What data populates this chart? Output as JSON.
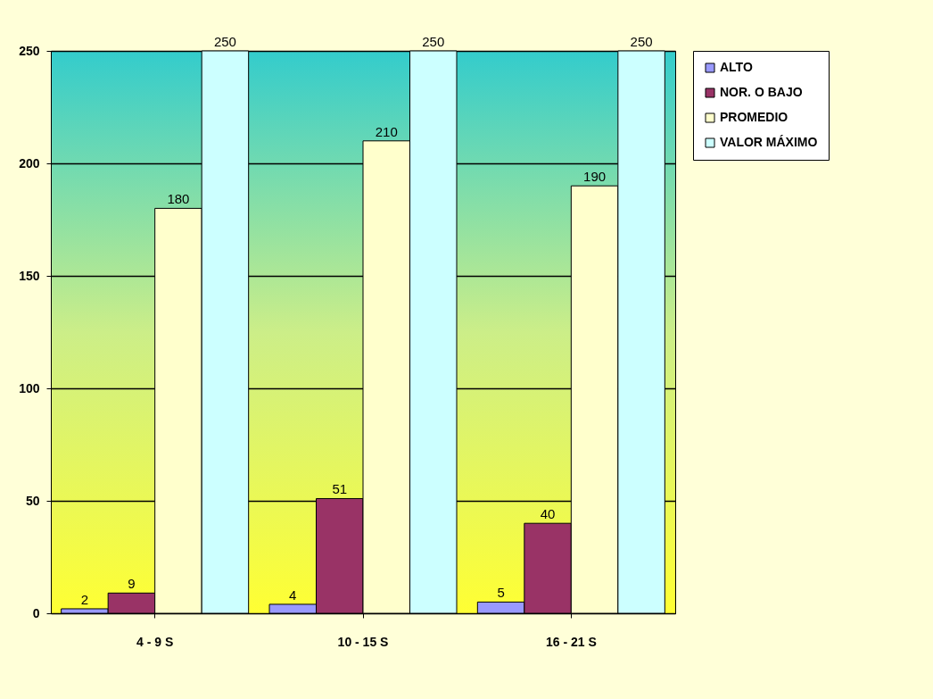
{
  "chart_data": {
    "type": "bar",
    "categories": [
      "4 - 9 S",
      "10 - 15 S",
      "16 - 21 S"
    ],
    "series": [
      {
        "name": "ALTO",
        "color": "#9999ff",
        "values": [
          2,
          4,
          5
        ]
      },
      {
        "name": "NOR. O BAJO",
        "color": "#993366",
        "values": [
          9,
          51,
          40
        ]
      },
      {
        "name": "PROMEDIO",
        "color": "#ffffcc",
        "values": [
          180,
          210,
          190
        ]
      },
      {
        "name": "VALOR MÁXIMO",
        "color": "#ccffff",
        "values": [
          250,
          250,
          250
        ]
      }
    ],
    "ylim": [
      0,
      250
    ],
    "yticks": [
      0,
      50,
      100,
      150,
      200,
      250
    ],
    "grid": "y",
    "legend": "right",
    "data_labels": true
  }
}
